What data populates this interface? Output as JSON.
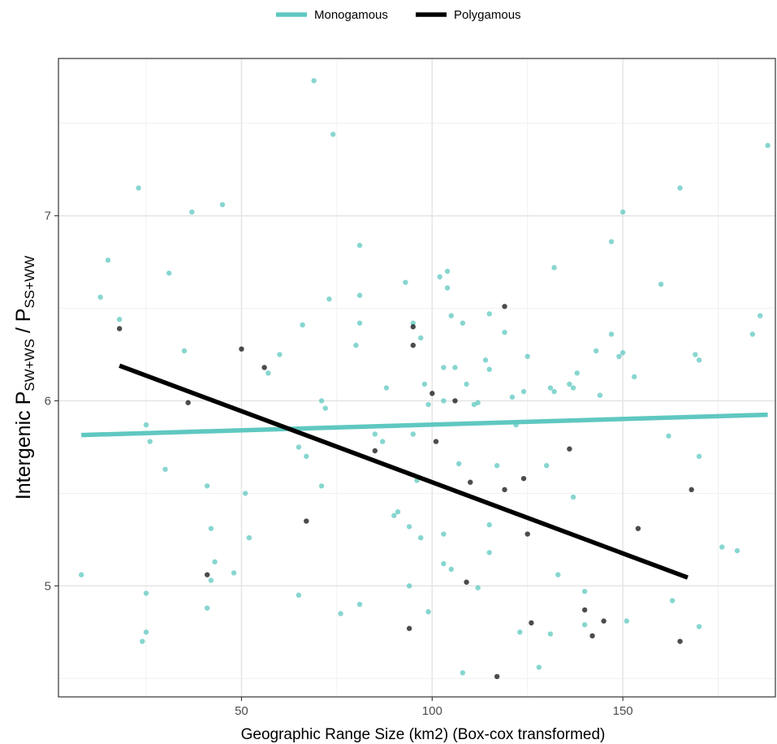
{
  "chart_data": {
    "type": "scatter",
    "xlabel": "Geographic Range Size (km2) (Box-cox transformed)",
    "ylabel": {
      "main": "Intergenic P",
      "sub1": "SW+WS",
      "sep": " / P",
      "sub2": "SS+WW"
    },
    "xlim": [
      2,
      190
    ],
    "ylim": [
      4.4,
      7.85
    ],
    "x_ticks": [
      50,
      100,
      150
    ],
    "y_ticks": [
      5,
      6,
      7
    ],
    "x_tick_labels": [
      "50",
      "100",
      "150"
    ],
    "y_tick_labels": [
      "5",
      "6",
      "7"
    ],
    "grid": true,
    "legend_position": "top",
    "series": [
      {
        "name": "Monogamous",
        "color": "#5fc8c0",
        "points": [
          [
            8,
            5.06
          ],
          [
            15,
            6.76
          ],
          [
            13,
            6.56
          ],
          [
            18,
            6.44
          ],
          [
            23,
            7.15
          ],
          [
            24,
            4.7
          ],
          [
            25,
            4.96
          ],
          [
            25,
            4.75
          ],
          [
            25,
            5.87
          ],
          [
            26,
            5.78
          ],
          [
            30,
            5.63
          ],
          [
            31,
            6.69
          ],
          [
            35,
            6.27
          ],
          [
            37,
            7.02
          ],
          [
            41,
            5.54
          ],
          [
            41,
            4.88
          ],
          [
            42,
            5.31
          ],
          [
            42,
            5.03
          ],
          [
            43,
            5.13
          ],
          [
            45,
            7.06
          ],
          [
            48,
            5.07
          ],
          [
            51,
            5.5
          ],
          [
            52,
            5.26
          ],
          [
            57,
            6.15
          ],
          [
            60,
            6.25
          ],
          [
            65,
            5.75
          ],
          [
            65,
            4.95
          ],
          [
            66,
            6.41
          ],
          [
            67,
            5.7
          ],
          [
            69,
            7.73
          ],
          [
            71,
            6.0
          ],
          [
            71,
            5.54
          ],
          [
            72,
            5.96
          ],
          [
            73,
            6.55
          ],
          [
            74,
            7.44
          ],
          [
            76,
            4.85
          ],
          [
            80,
            6.3
          ],
          [
            81,
            6.84
          ],
          [
            81,
            6.42
          ],
          [
            81,
            6.57
          ],
          [
            81,
            4.9
          ],
          [
            85,
            5.82
          ],
          [
            87,
            5.78
          ],
          [
            88,
            6.07
          ],
          [
            90,
            5.38
          ],
          [
            91,
            5.4
          ],
          [
            93,
            6.64
          ],
          [
            94,
            5.32
          ],
          [
            94,
            5.0
          ],
          [
            95,
            6.42
          ],
          [
            95,
            5.82
          ],
          [
            96,
            5.57
          ],
          [
            97,
            6.34
          ],
          [
            97,
            5.26
          ],
          [
            98,
            6.09
          ],
          [
            99,
            5.98
          ],
          [
            99,
            4.86
          ],
          [
            102,
            6.67
          ],
          [
            103,
            6.18
          ],
          [
            103,
            6.0
          ],
          [
            103,
            5.28
          ],
          [
            103,
            5.12
          ],
          [
            104,
            6.61
          ],
          [
            104,
            6.7
          ],
          [
            105,
            6.46
          ],
          [
            105,
            5.09
          ],
          [
            106,
            6.18
          ],
          [
            107,
            5.66
          ],
          [
            108,
            6.42
          ],
          [
            108,
            4.53
          ],
          [
            109,
            6.09
          ],
          [
            111,
            5.98
          ],
          [
            112,
            5.99
          ],
          [
            112,
            4.99
          ],
          [
            114,
            6.22
          ],
          [
            115,
            6.47
          ],
          [
            115,
            6.17
          ],
          [
            115,
            5.33
          ],
          [
            115,
            5.18
          ],
          [
            117,
            5.65
          ],
          [
            119,
            6.37
          ],
          [
            121,
            6.02
          ],
          [
            122,
            5.87
          ],
          [
            123,
            4.75
          ],
          [
            124,
            6.05
          ],
          [
            125,
            6.24
          ],
          [
            128,
            4.56
          ],
          [
            130,
            5.65
          ],
          [
            131,
            6.07
          ],
          [
            131,
            4.74
          ],
          [
            132,
            6.05
          ],
          [
            132,
            6.72
          ],
          [
            133,
            5.06
          ],
          [
            136,
            6.09
          ],
          [
            137,
            6.07
          ],
          [
            137,
            5.48
          ],
          [
            138,
            6.15
          ],
          [
            140,
            4.97
          ],
          [
            140,
            4.79
          ],
          [
            143,
            6.27
          ],
          [
            144,
            6.03
          ],
          [
            147,
            6.86
          ],
          [
            147,
            6.36
          ],
          [
            149,
            6.24
          ],
          [
            150,
            7.02
          ],
          [
            150,
            6.26
          ],
          [
            151,
            4.81
          ],
          [
            153,
            6.13
          ],
          [
            160,
            6.63
          ],
          [
            162,
            5.81
          ],
          [
            163,
            4.92
          ],
          [
            165,
            7.15
          ],
          [
            169,
            6.25
          ],
          [
            170,
            6.22
          ],
          [
            170,
            5.7
          ],
          [
            170,
            4.78
          ],
          [
            176,
            5.21
          ],
          [
            180,
            5.19
          ],
          [
            184,
            6.36
          ],
          [
            186,
            6.46
          ],
          [
            188,
            7.38
          ]
        ],
        "fit": {
          "x": [
            8,
            188
          ],
          "y": [
            5.815,
            5.925
          ]
        }
      },
      {
        "name": "Polygamous",
        "color": "#000000",
        "points": [
          [
            18,
            6.39
          ],
          [
            36,
            5.99
          ],
          [
            41,
            5.06
          ],
          [
            50,
            6.28
          ],
          [
            56,
            6.18
          ],
          [
            67,
            5.35
          ],
          [
            85,
            5.73
          ],
          [
            94,
            4.77
          ],
          [
            95,
            6.4
          ],
          [
            95,
            6.3
          ],
          [
            100,
            6.04
          ],
          [
            101,
            5.78
          ],
          [
            106,
            6.0
          ],
          [
            109,
            5.02
          ],
          [
            110,
            5.56
          ],
          [
            117,
            4.51
          ],
          [
            119,
            6.51
          ],
          [
            119,
            5.52
          ],
          [
            124,
            5.58
          ],
          [
            125,
            5.28
          ],
          [
            126,
            4.8
          ],
          [
            140,
            4.87
          ],
          [
            142,
            4.73
          ],
          [
            145,
            4.81
          ],
          [
            136,
            5.74
          ],
          [
            154,
            5.31
          ],
          [
            165,
            4.7
          ],
          [
            168,
            5.52
          ]
        ],
        "fit": {
          "x": [
            18,
            167
          ],
          "y": [
            6.19,
            5.045
          ]
        }
      }
    ]
  }
}
